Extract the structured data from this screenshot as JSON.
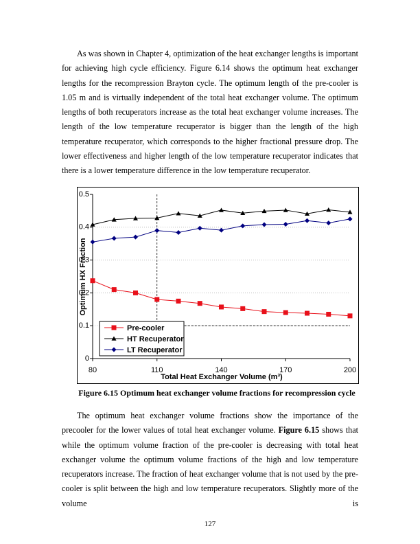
{
  "paragraphs": [
    [
      "As was shown in Chapter 4, optimization of the heat exchanger lengths is important for achieving high cycle efficiency.  Figure 6.14 shows the optimum heat exchanger lengths for the recompression Brayton cycle.  The optimum length of the pre-cooler is 1.05 m and is virtually independent of the total heat exchanger volume.  The optimum lengths of both recuperators increase as the total heat exchanger volume increases.  The length of the low temperature recuperator is bigger than the length of the high temperature recuperator, which corresponds to the higher fractional pressure drop.  The lower effectiveness and higher length of the low temperature recuperator indicates that there is a lower temperature difference in the low temperature recuperator."
    ],
    [
      "The optimum heat exchanger volume fractions show the importance of the precooler for the lower values of total heat exchanger volume.  ",
      "Figure 6.15",
      " shows that while the optimum volume fraction of the pre-cooler is decreasing with total heat exchanger volume the optimum volume fractions of the high and low temperature recuperators increase.  The fraction of heat exchanger volume that is not used by the pre-cooler is split between the high and low temperature recuperators.  Slightly more of the volume is"
    ]
  ],
  "caption": "Figure 6.15 Optimum heat exchanger volume fractions for recompression cycle",
  "page_number": "127",
  "chart_data": {
    "type": "line",
    "xlabel": "Total Heat Exchanger Volume (m³)",
    "ylabel": "Optimum HX Fraction",
    "x": [
      80,
      90,
      100,
      110,
      120,
      130,
      140,
      150,
      160,
      170,
      180,
      190,
      200
    ],
    "series": [
      {
        "name": "Pre-cooler",
        "color": "#e8101a",
        "marker": "square",
        "values": [
          0.237,
          0.21,
          0.2,
          0.18,
          0.175,
          0.168,
          0.157,
          0.152,
          0.143,
          0.14,
          0.138,
          0.135,
          0.13
        ]
      },
      {
        "name": "HT Recuperator",
        "color": "#000000",
        "marker": "triangle",
        "values": [
          0.408,
          0.423,
          0.427,
          0.428,
          0.442,
          0.435,
          0.452,
          0.443,
          0.449,
          0.452,
          0.441,
          0.453,
          0.446
        ]
      },
      {
        "name": "LT Recuperator",
        "color": "#000080",
        "marker": "diamond",
        "values": [
          0.355,
          0.366,
          0.37,
          0.39,
          0.384,
          0.397,
          0.391,
          0.404,
          0.408,
          0.409,
          0.42,
          0.413,
          0.425
        ]
      }
    ],
    "xlim": [
      80,
      200
    ],
    "xticks": [
      80,
      110,
      140,
      170,
      200
    ],
    "ylim": [
      0,
      0.5
    ],
    "yticks": [
      0,
      0.1,
      0.2,
      0.3,
      0.4,
      0.5
    ],
    "grid": true,
    "legend": "lower left",
    "reference_lines": {
      "x": 110,
      "y": 0.1
    }
  }
}
